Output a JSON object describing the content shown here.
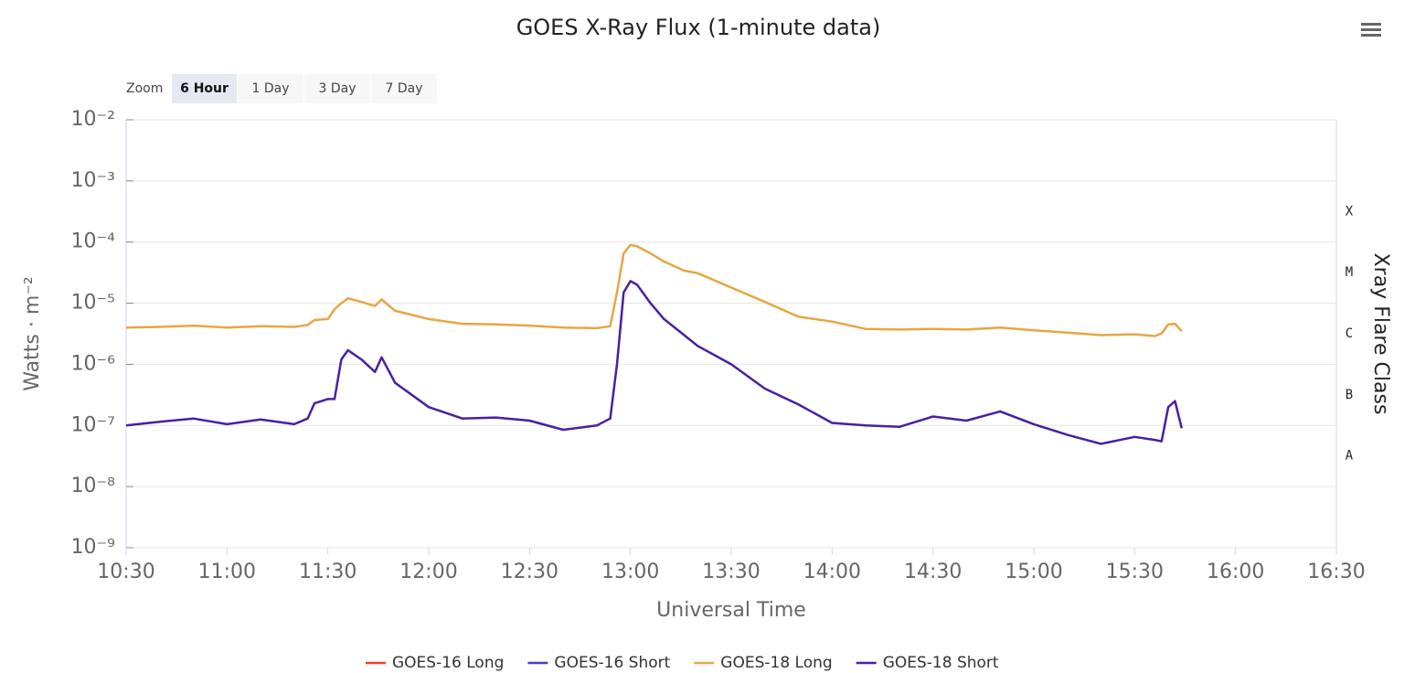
{
  "chart_data": {
    "type": "line",
    "title": "GOES X-Ray Flux (1-minute data)",
    "zoom": {
      "label": "Zoom",
      "buttons": [
        "6 Hour",
        "1 Day",
        "3 Day",
        "7 Day"
      ],
      "selected": "6 Hour"
    },
    "x_label": "Universal Time",
    "y_label": "Watts · m⁻²",
    "y2_label": "Xray Flare Class",
    "log_y": true,
    "grid": true,
    "legend": "bottom",
    "xlim": [
      "10:30",
      "16:30"
    ],
    "xticks": [
      "10:30",
      "11:00",
      "11:30",
      "12:00",
      "12:30",
      "13:00",
      "13:30",
      "14:00",
      "14:30",
      "15:00",
      "15:30",
      "16:00",
      "16:30"
    ],
    "ylim": [
      1e-09,
      0.01
    ],
    "yticks": [
      {
        "value": 1e-09,
        "label": "10⁻⁹"
      },
      {
        "value": 1e-08,
        "label": "10⁻⁸"
      },
      {
        "value": 1e-07,
        "label": "10⁻⁷"
      },
      {
        "value": 1e-06,
        "label": "10⁻⁶"
      },
      {
        "value": 1e-05,
        "label": "10⁻⁵"
      },
      {
        "value": 0.0001,
        "label": "10⁻⁴"
      },
      {
        "value": 0.001,
        "label": "10⁻³"
      },
      {
        "value": 0.01,
        "label": "10⁻²"
      }
    ],
    "flare_classes": [
      {
        "label": "A",
        "value": 1e-08
      },
      {
        "label": "B",
        "value": 1e-07
      },
      {
        "label": "C",
        "value": 1e-06
      },
      {
        "label": "M",
        "value": 1e-05
      },
      {
        "label": "X",
        "value": 0.0001
      }
    ],
    "x": [
      "10:30",
      "10:40",
      "10:50",
      "11:00",
      "11:10",
      "11:20",
      "11:24",
      "11:26",
      "11:30",
      "11:32",
      "11:34",
      "11:36",
      "11:40",
      "11:44",
      "11:46",
      "11:50",
      "12:00",
      "12:10",
      "12:20",
      "12:30",
      "12:40",
      "12:50",
      "12:54",
      "12:56",
      "12:58",
      "13:00",
      "13:02",
      "13:06",
      "13:10",
      "13:16",
      "13:20",
      "13:30",
      "13:40",
      "13:50",
      "14:00",
      "14:10",
      "14:20",
      "14:30",
      "14:40",
      "14:50",
      "15:00",
      "15:10",
      "15:20",
      "15:30",
      "15:36",
      "15:38",
      "15:40",
      "15:42",
      "15:44"
    ],
    "series": [
      {
        "name": "GOES-16 Long",
        "color": "#e8412c",
        "values": [
          null,
          null,
          null,
          null,
          null,
          null,
          null,
          null,
          null,
          null,
          null,
          null,
          null,
          null,
          null,
          null,
          null,
          null,
          null,
          null,
          null,
          null,
          null,
          null,
          null,
          null,
          null,
          null,
          null,
          null,
          null,
          null,
          null,
          null,
          null,
          null,
          null,
          null,
          null,
          null,
          null,
          null,
          null,
          null,
          null,
          null,
          null,
          null,
          null
        ]
      },
      {
        "name": "GOES-16 Short",
        "color": "#3f3fd6",
        "values": [
          null,
          null,
          null,
          null,
          null,
          null,
          null,
          null,
          null,
          null,
          null,
          null,
          null,
          null,
          null,
          null,
          null,
          null,
          null,
          null,
          null,
          null,
          null,
          null,
          null,
          null,
          null,
          null,
          null,
          null,
          null,
          null,
          null,
          null,
          null,
          null,
          null,
          null,
          null,
          null,
          null,
          null,
          null,
          null,
          null,
          null,
          null,
          null,
          null
        ]
      },
      {
        "name": "GOES-18 Long",
        "color": "#e6a644",
        "values": [
          4e-06,
          4.1e-06,
          4.3e-06,
          4e-06,
          4.2e-06,
          4.1e-06,
          4.4e-06,
          5.3e-06,
          5.5e-06,
          8e-06,
          1e-05,
          1.2e-05,
          1.05e-05,
          9e-06,
          1.15e-05,
          7.5e-06,
          5.5e-06,
          4.6e-06,
          4.5e-06,
          4.3e-06,
          4e-06,
          3.9e-06,
          4.2e-06,
          1.5e-05,
          6.5e-05,
          9e-05,
          8.5e-05,
          6.5e-05,
          4.8e-05,
          3.4e-05,
          3.1e-05,
          1.8e-05,
          1.05e-05,
          6e-06,
          5e-06,
          3.8e-06,
          3.7e-06,
          3.8e-06,
          3.7e-06,
          4e-06,
          3.6e-06,
          3.3e-06,
          3e-06,
          3.1e-06,
          2.9e-06,
          3.2e-06,
          4.5e-06,
          4.6e-06,
          3.5e-06
        ]
      },
      {
        "name": "GOES-18 Short",
        "color": "#4a1fa3",
        "values": [
          1e-07,
          1.15e-07,
          1.3e-07,
          1.05e-07,
          1.25e-07,
          1.05e-07,
          1.3e-07,
          2.3e-07,
          2.7e-07,
          2.7e-07,
          1.2e-06,
          1.7e-06,
          1.2e-06,
          7.5e-07,
          1.3e-06,
          5e-07,
          2e-07,
          1.3e-07,
          1.35e-07,
          1.2e-07,
          8.5e-08,
          1e-07,
          1.3e-07,
          1e-06,
          1.5e-05,
          2.3e-05,
          2e-05,
          1e-05,
          5.5e-06,
          3e-06,
          2e-06,
          1e-06,
          4e-07,
          2.2e-07,
          1.1e-07,
          1e-07,
          9.5e-08,
          1.4e-07,
          1.2e-07,
          1.7e-07,
          1.05e-07,
          7e-08,
          5e-08,
          6.5e-08,
          5.8e-08,
          5.5e-08,
          2e-07,
          2.5e-07,
          9e-08
        ]
      }
    ]
  }
}
